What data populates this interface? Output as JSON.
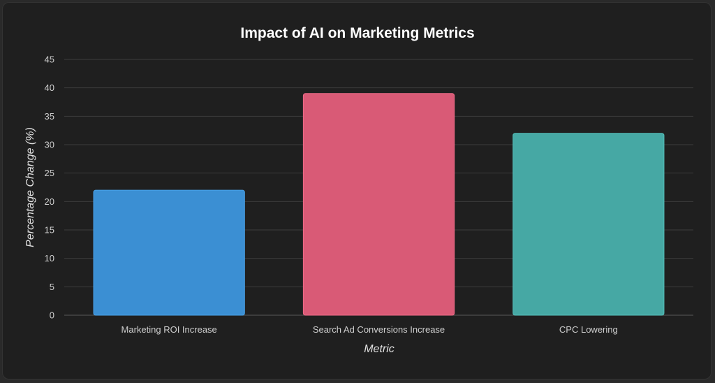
{
  "chart_data": {
    "type": "bar",
    "title": "Impact of AI on Marketing Metrics",
    "xlabel": "Metric",
    "ylabel": "Percentage Change (%)",
    "categories": [
      "Marketing ROI Increase",
      "Search Ad Conversions Increase",
      "CPC Lowering"
    ],
    "values": [
      22,
      39,
      32
    ],
    "ylim": [
      0,
      45
    ],
    "yticks": [
      0,
      5,
      10,
      15,
      20,
      25,
      30,
      35,
      40,
      45
    ],
    "grid": true,
    "legend": "none",
    "colors": {
      "bars": [
        "#3b8fd3",
        "#d95a76",
        "#46a8a4"
      ],
      "bar_borders": [
        "#4aa3ea",
        "#f06b88",
        "#55c0bb"
      ],
      "gridlines": "#3d3d3d",
      "background": "#1f1f1f"
    }
  }
}
